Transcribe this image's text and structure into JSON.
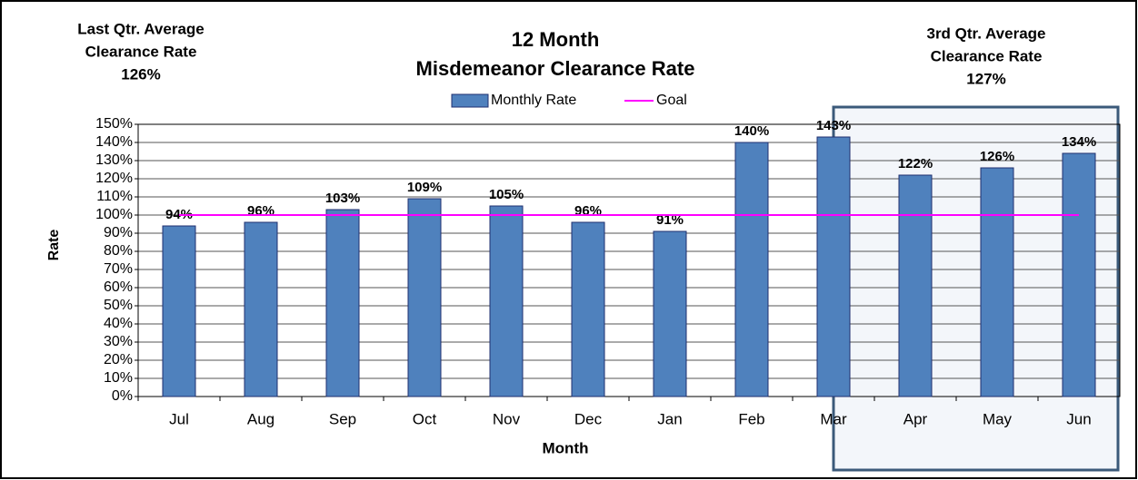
{
  "chart_data": {
    "type": "bar",
    "title": "12 Month",
    "subtitle": "Misdemeanor Clearance Rate",
    "annotations": [
      {
        "lines": [
          "Last Qtr. Average",
          "Clearance Rate",
          "126%"
        ]
      },
      {
        "lines": [
          "3rd Qtr. Average",
          "Clearance Rate",
          "127%"
        ]
      }
    ],
    "x_label": "Month",
    "y_label": "Rate",
    "categories": [
      "Jul",
      "Aug",
      "Sep",
      "Oct",
      "Nov",
      "Dec",
      "Jan",
      "Feb",
      "Mar",
      "Apr",
      "May",
      "Jun"
    ],
    "series": [
      {
        "name": "Monthly Rate",
        "color": "#4f81bd",
        "values": [
          94,
          96,
          103,
          109,
          105,
          96,
          91,
          140,
          143,
          122,
          126,
          134
        ],
        "value_labels": [
          "94%",
          "96%",
          "103%",
          "109%",
          "105%",
          "96%",
          "91%",
          "140%",
          "143%",
          "122%",
          "126%",
          "134%"
        ]
      },
      {
        "name": "Goal",
        "type": "line",
        "color": "#ff00ff",
        "values": [
          100,
          100,
          100,
          100,
          100,
          100,
          100,
          100,
          100,
          100,
          100,
          100
        ]
      }
    ],
    "ylim": [
      0,
      150
    ],
    "yticks": [
      {
        "value": 0,
        "label": "0%"
      },
      {
        "value": 10,
        "label": "10%"
      },
      {
        "value": 20,
        "label": "20%"
      },
      {
        "value": 30,
        "label": "30%"
      },
      {
        "value": 40,
        "label": "40%"
      },
      {
        "value": 50,
        "label": "50%"
      },
      {
        "value": 60,
        "label": "60%"
      },
      {
        "value": 70,
        "label": "70%"
      },
      {
        "value": 80,
        "label": "80%"
      },
      {
        "value": 90,
        "label": "90%"
      },
      {
        "value": 100,
        "label": "100%"
      },
      {
        "value": 110,
        "label": "110%"
      },
      {
        "value": 120,
        "label": "120%"
      },
      {
        "value": 130,
        "label": "130%"
      },
      {
        "value": 140,
        "label": "140%"
      },
      {
        "value": 150,
        "label": "150%"
      }
    ],
    "grid": true
  }
}
